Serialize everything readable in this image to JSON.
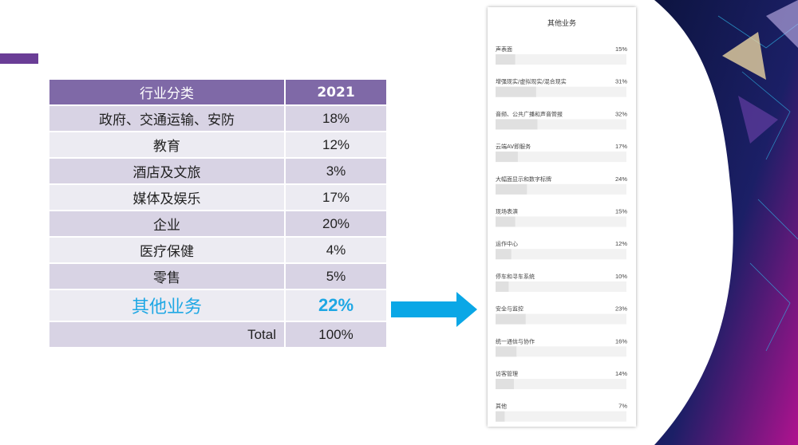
{
  "table": {
    "header": {
      "category": "行业分类",
      "year": "2021"
    },
    "rows": [
      {
        "category": "政府、交通运输、安防",
        "value": "18%"
      },
      {
        "category": "教育",
        "value": "12%"
      },
      {
        "category": "酒店及文旅",
        "value": "3%"
      },
      {
        "category": "媒体及娱乐",
        "value": "17%"
      },
      {
        "category": "企业",
        "value": "20%"
      },
      {
        "category": "医疗保健",
        "value": "4%"
      },
      {
        "category": "零售",
        "value": "5%"
      },
      {
        "category": "其他业务",
        "value": "22%"
      }
    ],
    "total": {
      "label": "Total",
      "value": "100%"
    }
  },
  "colors": {
    "header": "#7f69a7",
    "row_dark": "#d8d3e4",
    "row_light": "#ecebf2",
    "highlight_text": "#1ea7e4",
    "arrow": "#0aa7e6",
    "accent": "#6a3d96",
    "bar": "#e4e4e4"
  },
  "chart_data": {
    "type": "bar",
    "title": "其他业务",
    "categories": [
      "声表面",
      "增强现实/虚拟现实/混合现实",
      "音频、公共广播和声音管报",
      "云端AV即服务",
      "大幅面显示和数字标牌",
      "现场表演",
      "运作中心",
      "停车和寻车系统",
      "安全与监控",
      "统一通信与协作",
      "访客管理",
      "其他"
    ],
    "value_labels": [
      "15%",
      "31%",
      "32%",
      "17%",
      "24%",
      "15%",
      "12%",
      "10%",
      "23%",
      "16%",
      "14%",
      "7%"
    ],
    "values": [
      15,
      31,
      32,
      17,
      24,
      15,
      12,
      10,
      23,
      16,
      14,
      7
    ],
    "xlim": [
      0,
      100
    ]
  }
}
